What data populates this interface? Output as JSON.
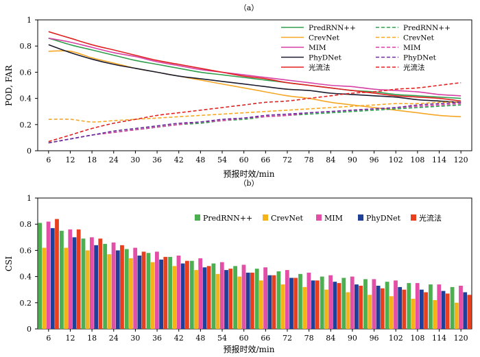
{
  "chart_data": [
    {
      "type": "line",
      "title": "（a）",
      "xlabel": "预报时效/min",
      "ylabel": "POD, FAR",
      "ylim": [
        0,
        1
      ],
      "yticks": [
        "0",
        "0.2",
        "0.4",
        "0.6",
        "0.8",
        "1"
      ],
      "grid": false,
      "legend_position": "top-right",
      "x": [
        6,
        12,
        18,
        24,
        30,
        36,
        42,
        48,
        54,
        60,
        66,
        72,
        78,
        84,
        90,
        96,
        102,
        108,
        114,
        120
      ],
      "series": [
        {
          "name": "PredRNN++",
          "metric": "POD",
          "color": "#2e9e4c",
          "dash": false,
          "values": [
            0.86,
            0.81,
            0.77,
            0.73,
            0.69,
            0.66,
            0.63,
            0.6,
            0.58,
            0.56,
            0.54,
            0.52,
            0.5,
            0.48,
            0.46,
            0.45,
            0.43,
            0.42,
            0.41,
            0.4
          ]
        },
        {
          "name": "CrevNet",
          "metric": "POD",
          "color": "#f5a623",
          "dash": false,
          "values": [
            0.76,
            0.76,
            0.71,
            0.67,
            0.63,
            0.6,
            0.57,
            0.54,
            0.51,
            0.48,
            0.45,
            0.42,
            0.4,
            0.37,
            0.35,
            0.33,
            0.31,
            0.29,
            0.27,
            0.26
          ]
        },
        {
          "name": "MIM",
          "metric": "POD",
          "color": "#d63fa3",
          "dash": false,
          "values": [
            0.86,
            0.83,
            0.79,
            0.75,
            0.72,
            0.68,
            0.65,
            0.62,
            0.6,
            0.58,
            0.56,
            0.54,
            0.52,
            0.5,
            0.49,
            0.47,
            0.46,
            0.45,
            0.43,
            0.42
          ]
        },
        {
          "name": "PhyDNet",
          "metric": "POD",
          "color": "#1a1a2e",
          "dash": false,
          "values": [
            0.81,
            0.75,
            0.7,
            0.66,
            0.63,
            0.6,
            0.57,
            0.55,
            0.53,
            0.51,
            0.49,
            0.47,
            0.46,
            0.44,
            0.43,
            0.42,
            0.41,
            0.39,
            0.38,
            0.37
          ]
        },
        {
          "name": "光流法",
          "metric": "POD",
          "color": "#e02020",
          "dash": false,
          "values": [
            0.91,
            0.86,
            0.81,
            0.77,
            0.73,
            0.69,
            0.66,
            0.63,
            0.6,
            0.57,
            0.55,
            0.52,
            0.5,
            0.48,
            0.46,
            0.44,
            0.42,
            0.41,
            0.4,
            0.38
          ]
        },
        {
          "name": "PredRNN++",
          "metric": "FAR",
          "color": "#2e9e4c",
          "dash": true,
          "values": [
            0.06,
            0.09,
            0.12,
            0.14,
            0.16,
            0.18,
            0.2,
            0.21,
            0.23,
            0.24,
            0.26,
            0.27,
            0.28,
            0.29,
            0.3,
            0.31,
            0.32,
            0.33,
            0.34,
            0.35
          ]
        },
        {
          "name": "CrevNet",
          "metric": "FAR",
          "color": "#f5a623",
          "dash": true,
          "values": [
            0.24,
            0.24,
            0.22,
            0.23,
            0.24,
            0.25,
            0.26,
            0.27,
            0.28,
            0.29,
            0.3,
            0.31,
            0.32,
            0.33,
            0.34,
            0.35,
            0.36,
            0.36,
            0.37,
            0.37
          ]
        },
        {
          "name": "MIM",
          "metric": "FAR",
          "color": "#d63fa3",
          "dash": true,
          "values": [
            0.06,
            0.09,
            0.12,
            0.14,
            0.16,
            0.18,
            0.2,
            0.22,
            0.23,
            0.25,
            0.26,
            0.27,
            0.29,
            0.3,
            0.31,
            0.32,
            0.33,
            0.34,
            0.35,
            0.36
          ]
        },
        {
          "name": "PhyDNet",
          "metric": "FAR",
          "color": "#6a2c9e",
          "dash": true,
          "values": [
            0.06,
            0.09,
            0.12,
            0.15,
            0.17,
            0.19,
            0.21,
            0.22,
            0.24,
            0.25,
            0.27,
            0.28,
            0.29,
            0.3,
            0.31,
            0.32,
            0.33,
            0.35,
            0.36,
            0.37
          ]
        },
        {
          "name": "光流法",
          "metric": "FAR",
          "color": "#e02020",
          "dash": true,
          "values": [
            0.07,
            0.12,
            0.17,
            0.21,
            0.24,
            0.27,
            0.29,
            0.31,
            0.33,
            0.35,
            0.37,
            0.38,
            0.4,
            0.42,
            0.44,
            0.45,
            0.47,
            0.48,
            0.5,
            0.52
          ]
        }
      ]
    },
    {
      "type": "bar",
      "title": "（b）",
      "xlabel": "预报时效/min",
      "ylabel": "CSI",
      "ylim": [
        0,
        1
      ],
      "yticks": [
        "0",
        "0.2",
        "0.4",
        "0.6",
        "0.8",
        "1"
      ],
      "grid": false,
      "legend_position": "top-right",
      "categories": [
        "6",
        "12",
        "18",
        "24",
        "30",
        "36",
        "42",
        "48",
        "54",
        "60",
        "66",
        "72",
        "78",
        "84",
        "90",
        "96",
        "102",
        "108",
        "114",
        "120"
      ],
      "series": [
        {
          "name": "PredRNN++",
          "color": "#4cb050",
          "values": [
            0.81,
            0.75,
            0.69,
            0.65,
            0.61,
            0.58,
            0.55,
            0.52,
            0.5,
            0.48,
            0.46,
            0.44,
            0.42,
            0.4,
            0.39,
            0.38,
            0.36,
            0.35,
            0.34,
            0.32
          ]
        },
        {
          "name": "CrevNet",
          "color": "#f2b31b",
          "values": [
            0.62,
            0.62,
            0.6,
            0.57,
            0.54,
            0.51,
            0.48,
            0.45,
            0.42,
            0.4,
            0.37,
            0.34,
            0.32,
            0.3,
            0.28,
            0.26,
            0.25,
            0.23,
            0.22,
            0.2
          ]
        },
        {
          "name": "MIM",
          "color": "#e34fa6",
          "values": [
            0.82,
            0.76,
            0.7,
            0.66,
            0.62,
            0.59,
            0.56,
            0.54,
            0.51,
            0.49,
            0.47,
            0.45,
            0.43,
            0.41,
            0.4,
            0.38,
            0.37,
            0.35,
            0.34,
            0.33
          ]
        },
        {
          "name": "PhyDNet",
          "color": "#1f3f99",
          "values": [
            0.77,
            0.7,
            0.64,
            0.6,
            0.56,
            0.53,
            0.5,
            0.47,
            0.45,
            0.43,
            0.41,
            0.39,
            0.37,
            0.36,
            0.34,
            0.33,
            0.32,
            0.3,
            0.29,
            0.28
          ]
        },
        {
          "name": "光流法",
          "color": "#e8401e",
          "values": [
            0.84,
            0.76,
            0.69,
            0.64,
            0.59,
            0.55,
            0.52,
            0.48,
            0.46,
            0.43,
            0.41,
            0.39,
            0.37,
            0.35,
            0.33,
            0.31,
            0.3,
            0.28,
            0.27,
            0.26
          ]
        }
      ]
    }
  ]
}
